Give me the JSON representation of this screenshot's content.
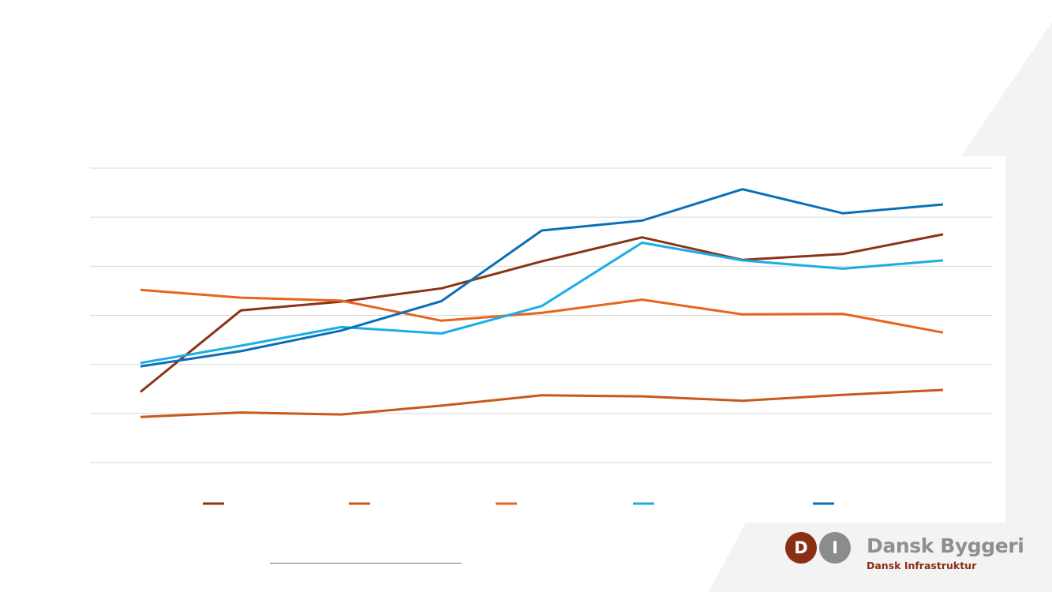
{
  "colors": {
    "series_1": "#8a3417",
    "series_2": "#c9581b",
    "series_3": "#e8641e",
    "series_4": "#1aaee6",
    "series_5": "#0a6fb8",
    "grid": "#d9d9d9",
    "background_shape": "#f3f3f3"
  },
  "logo": {
    "letter_d": "D",
    "letter_i": "I",
    "name": "Dansk Byggeri",
    "subtitle": "Dansk Infrastruktur"
  },
  "chart_data": {
    "type": "line",
    "title": "",
    "xlabel": "",
    "ylabel": "",
    "x": [
      1,
      2,
      3,
      4,
      5,
      6,
      7,
      8,
      9
    ],
    "ylim": [
      0,
      6
    ],
    "y_gridlines": [
      0,
      1,
      2,
      3,
      4,
      5,
      6
    ],
    "grid": true,
    "legend": "bottom",
    "series": [
      {
        "color_key": "series_1",
        "values": [
          1.44,
          3.1,
          3.28,
          3.55,
          4.1,
          4.59,
          4.13,
          4.25,
          4.65
        ]
      },
      {
        "color_key": "series_2",
        "values": [
          0.93,
          1.02,
          0.98,
          1.16,
          1.37,
          1.35,
          1.26,
          1.38,
          1.48
        ]
      },
      {
        "color_key": "series_3",
        "values": [
          3.52,
          3.36,
          3.3,
          2.89,
          3.05,
          3.32,
          3.02,
          3.03,
          2.65
        ]
      },
      {
        "color_key": "series_4",
        "values": [
          2.03,
          2.38,
          2.76,
          2.63,
          3.19,
          4.48,
          4.12,
          3.95,
          4.12
        ]
      },
      {
        "color_key": "series_5",
        "values": [
          1.96,
          2.27,
          2.69,
          3.29,
          4.73,
          4.93,
          5.57,
          5.08,
          5.26
        ]
      }
    ]
  }
}
